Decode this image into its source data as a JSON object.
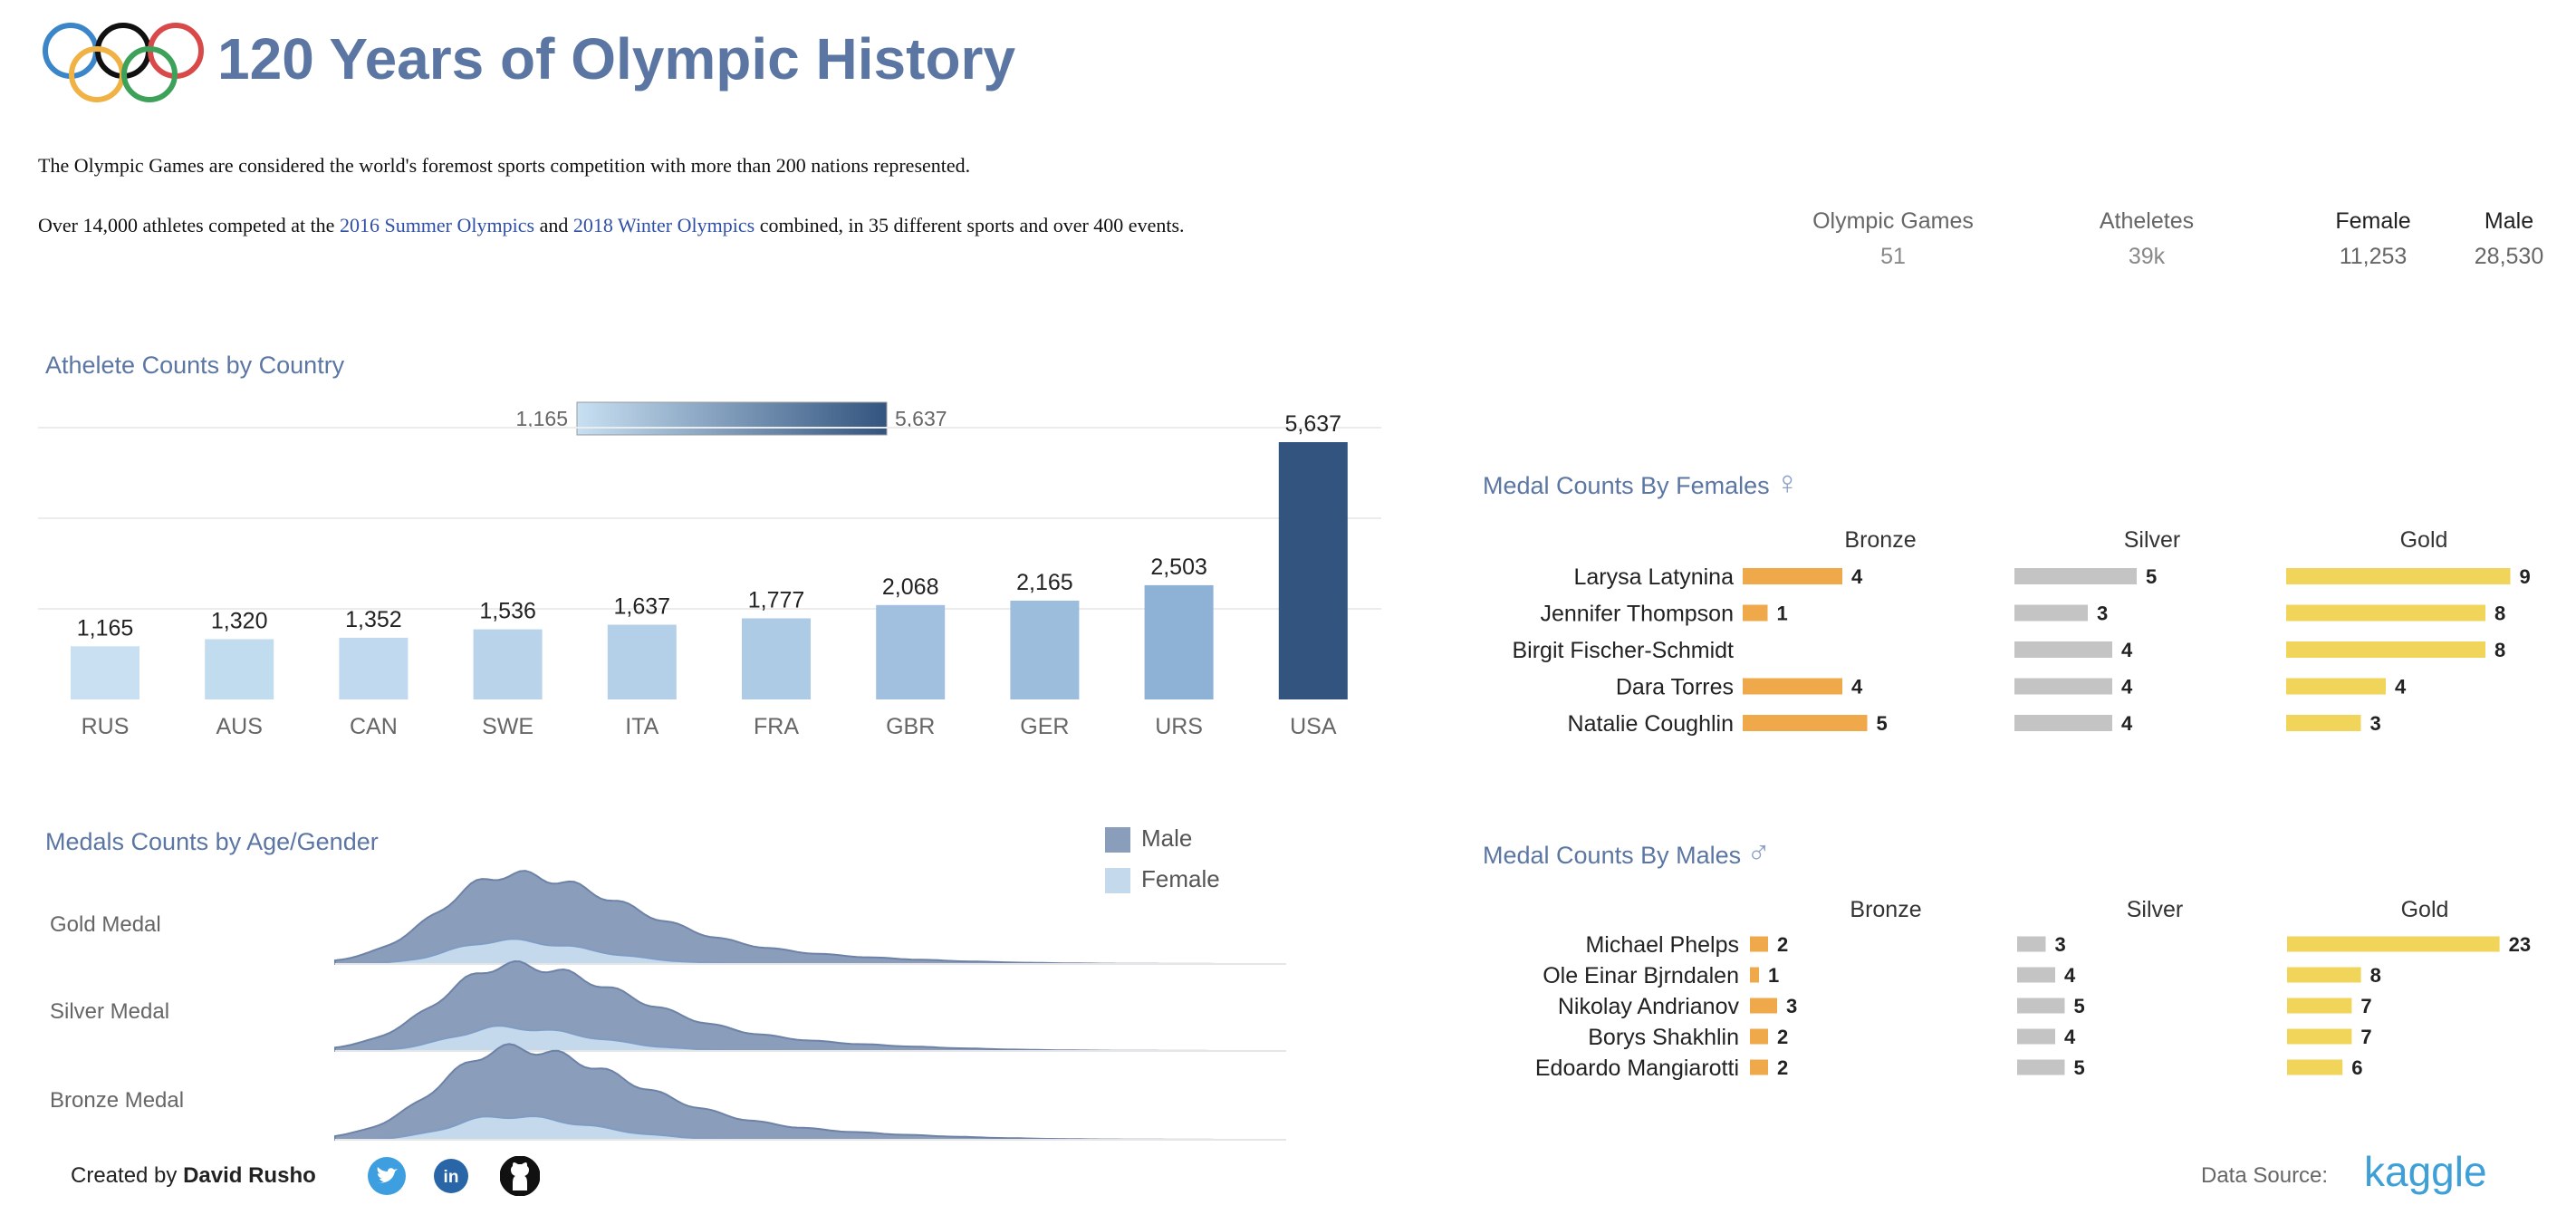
{
  "header": {
    "title": "120 Years of Olympic History",
    "intro_line1": "The Olympic Games are considered the world's foremost sports competition with more than 200 nations represented.",
    "intro_line2_a": "Over 14,000 athletes competed at the ",
    "intro_link1": "2016 Summer Olympics",
    "intro_line2_b": " and ",
    "intro_link2": "2018 Winter Olympics",
    "intro_line2_c": " combined, in 35 different sports and over 400 events."
  },
  "kpis": [
    {
      "label": "Olympic Games",
      "value": "51"
    },
    {
      "label": "Atheletes",
      "value": "39k"
    },
    {
      "label": "Female",
      "value": "11,253"
    },
    {
      "label": "Male",
      "value": "28,530"
    }
  ],
  "sections": {
    "country": "Athelete Counts by Country",
    "age_gender": "Medals Counts by Age/Gender",
    "females": "Medal Counts By Females",
    "males": "Medal Counts By Males"
  },
  "legend": {
    "male": "Male",
    "female": "Female"
  },
  "colors": {
    "male": "#8a9dbb",
    "female": "#c5d9ec",
    "bronze": "#efa84a",
    "silver": "#c4c4c4",
    "gold": "#f0d55a",
    "accent": "#5b76a3"
  },
  "footer": {
    "created_by": "Created by ",
    "author": "David Rusho",
    "data_source": "Data Source:",
    "kaggle": "kaggle"
  },
  "icons": [
    "olympic-rings-icon",
    "female-symbol-icon",
    "male-symbol-icon",
    "twitter-icon",
    "linkedin-icon",
    "github-icon"
  ],
  "chart_data": [
    {
      "type": "bar",
      "title": "Athelete Counts by Country",
      "categories": [
        "RUS",
        "AUS",
        "CAN",
        "SWE",
        "ITA",
        "FRA",
        "GBR",
        "GER",
        "URS",
        "USA"
      ],
      "values": [
        1165,
        1320,
        1352,
        1536,
        1637,
        1777,
        2068,
        2165,
        2503,
        5637
      ],
      "value_labels": [
        "1,165",
        "1,320",
        "1,352",
        "1,536",
        "1,637",
        "1,777",
        "2,068",
        "2,165",
        "2,503",
        "5,637"
      ],
      "color_legend": {
        "min_label": "1,165",
        "max_label": "5,637",
        "min_color": "#c8e0f2",
        "max_color": "#33547f"
      },
      "grid": true
    },
    {
      "type": "area",
      "title": "Medals Counts by Age/Gender",
      "rows": [
        "Gold Medal",
        "Silver Medal",
        "Bronze Medal"
      ],
      "series": [
        {
          "name": "Male"
        },
        {
          "name": "Female"
        }
      ],
      "x_axis": "age (not labeled)"
    },
    {
      "type": "bar",
      "title": "Medal Counts By Females",
      "columns": [
        "Bronze",
        "Silver",
        "Gold"
      ],
      "athletes": [
        "Larysa Latynina",
        "Jennifer Thompson",
        "Birgit Fischer-Schmidt",
        "Dara Torres",
        "Natalie Coughlin"
      ],
      "bronze": [
        4,
        1,
        null,
        4,
        5
      ],
      "silver": [
        5,
        3,
        4,
        4,
        4
      ],
      "gold": [
        9,
        8,
        8,
        4,
        3
      ]
    },
    {
      "type": "bar",
      "title": "Medal Counts By Males",
      "columns": [
        "Bronze",
        "Silver",
        "Gold"
      ],
      "athletes": [
        "Michael Phelps",
        "Ole Einar Bjrndalen",
        "Nikolay Andrianov",
        "Borys Shakhlin",
        "Edoardo Mangiarotti"
      ],
      "bronze": [
        2,
        1,
        3,
        2,
        2
      ],
      "silver": [
        3,
        4,
        5,
        4,
        5
      ],
      "gold": [
        23,
        8,
        7,
        7,
        6
      ]
    }
  ]
}
